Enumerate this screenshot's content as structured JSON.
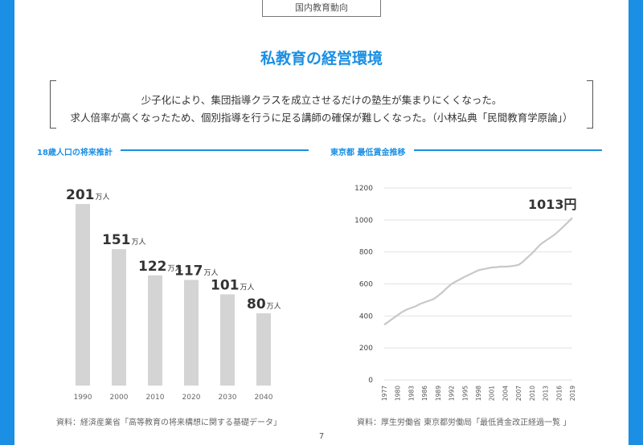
{
  "header": {
    "tab": "国内教育動向"
  },
  "title": "私教育の経営環境",
  "quote": {
    "line1": "少子化により、集団指導クラスを成立させるだけの塾生が集まりにくくなった。",
    "line2": "求人倍率が高くなったため、個別指導を行うに足る講師の確保が難しくなった。（小林弘典「民間教育学原論」）"
  },
  "colors": {
    "accent": "#1a8fe3",
    "bar": "#d4d4d4",
    "line": "#c8c8c8"
  },
  "left": {
    "heading": "18歳人口の将来推計",
    "source": "資料：経済産業省「高等教育の将来構想に関する基礎データ」"
  },
  "right": {
    "heading": "東京都 最低賃金推移",
    "source": "資料：厚生労働省 東京都労働局「最低賃金改正経過一覧 」"
  },
  "page_number": "7",
  "chart_data": [
    {
      "type": "bar",
      "title": "18歳人口の将来推計",
      "categories": [
        "1990",
        "2000",
        "2010",
        "2020",
        "2030",
        "2040"
      ],
      "values": [
        201,
        151,
        122,
        117,
        101,
        80
      ],
      "value_labels": [
        "201",
        "151",
        "122",
        "117",
        "101",
        "80"
      ],
      "unit": "万人",
      "ylim": [
        0,
        201
      ],
      "grid": false
    },
    {
      "type": "line",
      "title": "東京都 最低賃金推移",
      "x": [
        "1977",
        "1978",
        "1979",
        "1980",
        "1981",
        "1982",
        "1983",
        "1984",
        "1985",
        "1986",
        "1987",
        "1988",
        "1989",
        "1990",
        "1991",
        "1992",
        "1993",
        "1994",
        "1995",
        "1996",
        "1997",
        "1998",
        "1999",
        "2000",
        "2001",
        "2002",
        "2003",
        "2004",
        "2005",
        "2006",
        "2007",
        "2008",
        "2009",
        "2010",
        "2011",
        "2012",
        "2013",
        "2014",
        "2015",
        "2016",
        "2017",
        "2018",
        "2019"
      ],
      "x_tick_labels": [
        "1977",
        "1980",
        "1983",
        "1986",
        "1989",
        "1992",
        "1995",
        "1998",
        "2001",
        "2004",
        "2007",
        "2010",
        "2013",
        "2016",
        "2019"
      ],
      "values": [
        345,
        365,
        385,
        405,
        425,
        440,
        450,
        460,
        475,
        485,
        495,
        505,
        525,
        548,
        575,
        600,
        615,
        630,
        645,
        658,
        672,
        685,
        692,
        697,
        703,
        705,
        708,
        708,
        710,
        714,
        719,
        739,
        766,
        791,
        821,
        850,
        869,
        888,
        907,
        932,
        958,
        985,
        1013
      ],
      "yticks": [
        0,
        200,
        400,
        600,
        800,
        1000,
        1200
      ],
      "ylim": [
        0,
        1200
      ],
      "annotation": "1013円",
      "grid": true
    }
  ]
}
